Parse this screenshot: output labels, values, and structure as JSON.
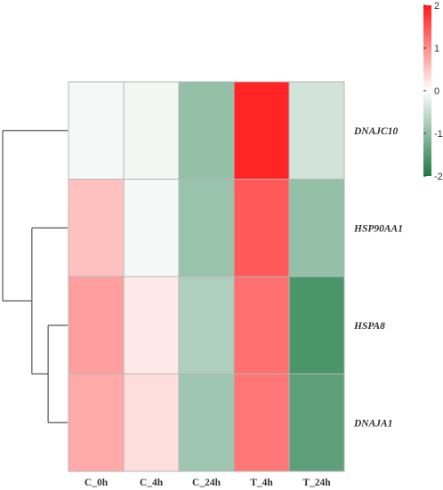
{
  "chart_data": {
    "type": "heatmap",
    "rows": [
      "DNAJC10",
      "HSP90AA1",
      "HSPA8",
      "DNAJA1"
    ],
    "columns": [
      "C_0h",
      "C_4h",
      "C_24h",
      "T_4h",
      "T_24h"
    ],
    "values": [
      [
        -0.1,
        -0.12,
        -0.95,
        1.9,
        -0.4
      ],
      [
        0.55,
        -0.1,
        -0.9,
        1.45,
        -0.95
      ],
      [
        0.85,
        0.2,
        -0.7,
        1.25,
        -1.6
      ],
      [
        0.75,
        0.3,
        -0.85,
        1.2,
        -1.45
      ]
    ],
    "color_scale": {
      "min": -2,
      "max": 2,
      "low_color": "#1e7a45",
      "mid_color": "#ffffff",
      "high_color": "#ff1a1a"
    },
    "legend": {
      "ticks": [
        "2",
        "1",
        "0",
        "-1",
        "-2"
      ],
      "placement": "top-right"
    },
    "row_dendrogram": {
      "merges": [
        {
          "left": "HSPA8",
          "right": "DNAJA1",
          "height": 0.3
        },
        {
          "left": "HSP90AA1",
          "right": "HSPA8+DNAJA1",
          "height": 0.55
        },
        {
          "left": "DNAJC10",
          "right": "HSP90AA1+HSPA8+DNAJA1",
          "height": 1.0
        }
      ]
    },
    "xlabel": "",
    "ylabel": "",
    "title": ""
  }
}
